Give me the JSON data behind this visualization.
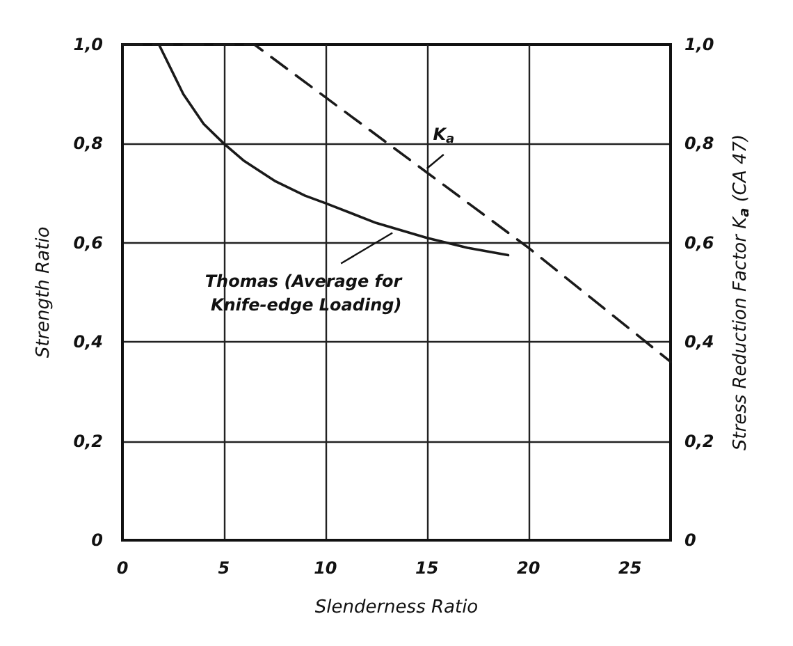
{
  "chart_data": {
    "type": "line",
    "xlabel": "Slenderness Ratio",
    "ylabel": "Strength Ratio",
    "y2label": "Stress Reduction Factor K$_{a}$ (CA 47)",
    "series": [
      {
        "color": "#1a1a1a",
        "line_style": "solid",
        "x": [
          1.8,
          3,
          4,
          5,
          6,
          7.5,
          9,
          10,
          12.5,
          15,
          17,
          19
        ],
        "values": [
          1.0,
          0.9,
          0.84,
          0.8,
          0.765,
          0.725,
          0.695,
          0.68,
          0.64,
          0.61,
          0.59,
          0.575
        ]
      },
      {
        "color": "#1a1a1a",
        "line_style": "dashed",
        "x": [
          0,
          6.5,
          20,
          27
        ],
        "values": [
          1.0,
          1.0,
          0.59,
          0.36
        ]
      }
    ],
    "xlim": [
      0,
      27
    ],
    "xticks": [
      0,
      5,
      10,
      15,
      20,
      25
    ],
    "ylim": [
      0,
      1
    ],
    "yticks": [
      0,
      {
        "value": 0.2,
        "label": "0,2"
      },
      {
        "value": 0.4,
        "label": "0,4"
      },
      {
        "value": 0.6,
        "label": "0,6"
      },
      {
        "value": 0.8,
        "label": "0,8"
      },
      {
        "value": 1,
        "label": "1,0"
      }
    ],
    "y2lim": [
      0,
      1
    ],
    "y2ticks": [
      0,
      {
        "value": 0.2,
        "label": "0,2"
      },
      {
        "value": 0.4,
        "label": "0,4"
      },
      {
        "value": 0.6,
        "label": "0,6"
      },
      {
        "value": 0.8,
        "label": "0,8"
      },
      {
        "value": 1,
        "label": "1,0"
      }
    ],
    "annotations": [
      {
        "text": "K$_{a}$",
        "x": 15,
        "y": 0.75
      },
      {
        "text": "Thomas (Average for Knife-edge Loading)",
        "x": 13.3,
        "y": 0.62
      }
    ],
    "grid": true,
    "marker": "none"
  }
}
